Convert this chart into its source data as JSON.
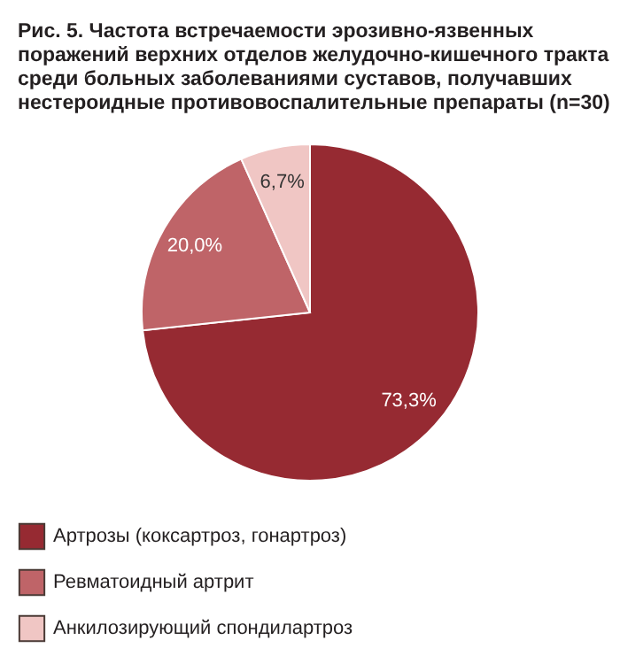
{
  "chart_data": {
    "type": "pie",
    "title": "Рис. 5. Частота встречаемости эрозивно-язвенных поражений верхних отделов желудочно-кишечного тракта среди больных заболеваниями суставов, получавших нестероидные противовоспалительные препараты (n=30)",
    "categories": [
      "Артрозы (коксартроз, гонартроз)",
      "Ревматоидный артрит",
      "Анкилозирующий спондилартроз"
    ],
    "values": [
      73.3,
      20.0,
      6.7
    ],
    "colors": [
      "#962a32",
      "#bf6468",
      "#f0c6c4"
    ],
    "value_labels": [
      "73,3%",
      "20,0%",
      "6,7%"
    ],
    "legend": "bottom"
  }
}
